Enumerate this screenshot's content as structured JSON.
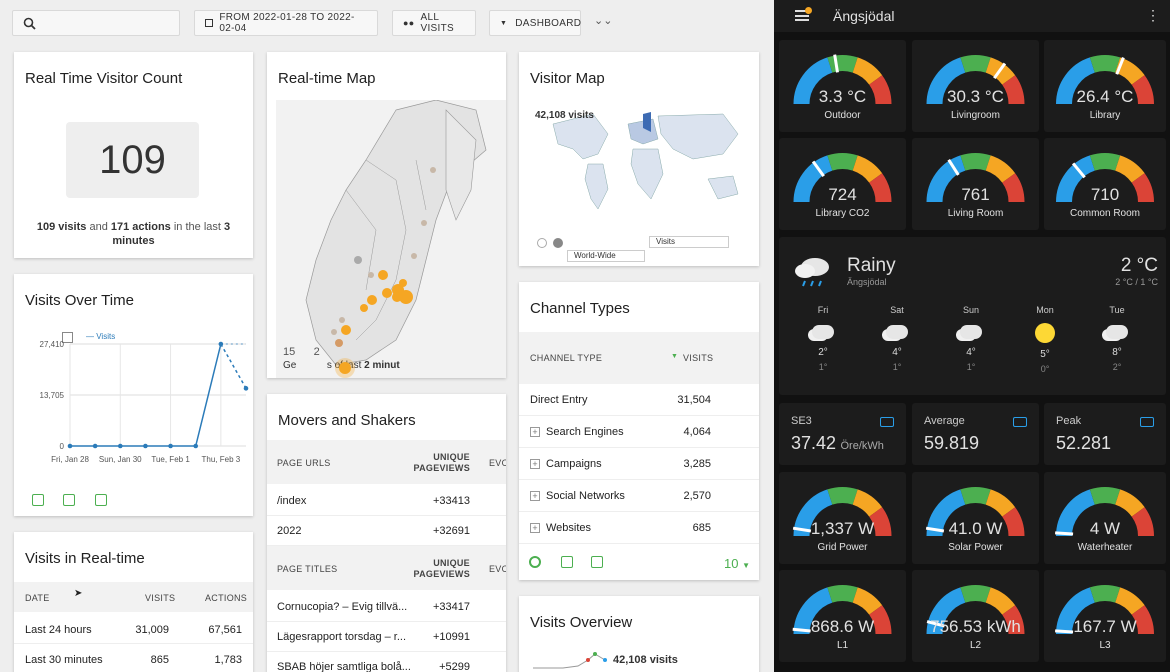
{
  "toolbar": {
    "date_range": "FROM 2022-01-28 TO 2022-02-04",
    "segment": "ALL VISITS",
    "dashboard": "DASHBOARD"
  },
  "realtime_count": {
    "title": "Real Time Visitor Count",
    "count": "109",
    "visits_num": "109 visits",
    "and": "and",
    "actions_num": "171 actions",
    "in_last": "in the last",
    "minutes": "3",
    "minutes_word": "minutes"
  },
  "realtime_map": {
    "title": "Real-time Map",
    "overlay_a": "15",
    "overlay_b": "2",
    "overlay_c": "Ge",
    "overlay_d": "s of last",
    "overlay_e": "2 minut"
  },
  "visitor_map": {
    "title": "Visitor Map",
    "visits": "42,108 visits",
    "metric_select": "Visits",
    "region_select": "World-Wide"
  },
  "visits_over_time": {
    "title": "Visits Over Time",
    "legend": "Visits",
    "y_ticks": [
      "27,410",
      "13,705",
      "0"
    ],
    "x_labels": [
      "Fri, Jan 28",
      "Sun, Jan 30",
      "Tue, Feb 1",
      "Thu, Feb 3"
    ]
  },
  "chart_data": {
    "type": "line",
    "x": [
      "Jan 28",
      "Jan 29",
      "Jan 30",
      "Jan 31",
      "Feb 1",
      "Feb 2",
      "Feb 3",
      "Feb 4"
    ],
    "series": [
      {
        "name": "Visits",
        "values": [
          0,
          0,
          0,
          0,
          0,
          0,
          27410,
          15500
        ]
      }
    ],
    "ylim": [
      0,
      27410
    ],
    "y_ticks": [
      0,
      13705,
      27410
    ],
    "grid": true,
    "legend": "top-left"
  },
  "channel_types": {
    "title": "Channel Types",
    "col_type": "CHANNEL TYPE",
    "col_visits": "VISITS",
    "rows": [
      {
        "label": "Direct Entry",
        "value": "31,504"
      },
      {
        "label": "Search Engines",
        "value": "4,064"
      },
      {
        "label": "Campaigns",
        "value": "3,285"
      },
      {
        "label": "Social Networks",
        "value": "2,570"
      },
      {
        "label": "Websites",
        "value": "685"
      }
    ],
    "limit": "10"
  },
  "movers": {
    "title": "Movers and Shakers",
    "col_urls": "PAGE URLS",
    "col_unique_a": "UNIQUE",
    "col_unique_b": "PAGEVIEWS",
    "col_evo": "EVO",
    "url_rows": [
      {
        "label": "/index",
        "value": "+33413"
      },
      {
        "label": "2022",
        "value": "+32691"
      }
    ],
    "col_titles": "PAGE TITLES",
    "title_rows": [
      {
        "label": "Cornucopia? – Evig tillvä...",
        "value": "+33417"
      },
      {
        "label": "Lägesrapport torsdag – r...",
        "value": "+10991"
      },
      {
        "label": "SBAB höjer samtliga bolå...",
        "value": "+5299"
      }
    ]
  },
  "visits_realtime": {
    "title": "Visits in Real-time",
    "col_date": "DATE",
    "col_visits": "VISITS",
    "col_actions": "ACTIONS",
    "rows": [
      {
        "label": "Last 24 hours",
        "visits": "31,009",
        "actions": "67,561"
      },
      {
        "label": "Last 30 minutes",
        "visits": "865",
        "actions": "1,783"
      }
    ]
  },
  "visits_overview": {
    "title": "Visits Overview",
    "visits": "42,108 visits"
  },
  "ha": {
    "title": "Ängsjödal",
    "gauges_top": [
      {
        "value": "3.3 °C",
        "name": "Outdoor",
        "level": 0.45
      },
      {
        "value": "30.3 °C",
        "name": "Livingroom",
        "level": 0.7
      },
      {
        "value": "26.4 °C",
        "name": "Library",
        "level": 0.62
      },
      {
        "value": "724",
        "name": "Library CO2",
        "level": 0.3
      },
      {
        "value": "761",
        "name": "Living Room",
        "level": 0.32
      },
      {
        "value": "710",
        "name": "Common Room",
        "level": 0.28
      }
    ],
    "weather": {
      "condition": "Rainy",
      "location": "Ängsjödal",
      "temp": "2 °C",
      "range": "2 °C / 1 °C",
      "forecast": [
        {
          "day": "Fri",
          "high": "2°",
          "low": "1°",
          "icon": "cloud-rain-icon"
        },
        {
          "day": "Sat",
          "high": "4°",
          "low": "1°",
          "icon": "cloud-icon"
        },
        {
          "day": "Sun",
          "high": "4°",
          "low": "1°",
          "icon": "cloud-rain-icon"
        },
        {
          "day": "Mon",
          "high": "5°",
          "low": "0°",
          "icon": "sun-icon"
        },
        {
          "day": "Tue",
          "high": "8°",
          "low": "2°",
          "icon": "cloud-rain-icon"
        }
      ]
    },
    "prices": [
      {
        "label": "SE3",
        "value": "37.42",
        "unit": "Öre/kWh"
      },
      {
        "label": "Average",
        "value": "59.819",
        "unit": ""
      },
      {
        "label": "Peak",
        "value": "52.281",
        "unit": ""
      }
    ],
    "gauges_bottom": [
      {
        "value": "1,337 W",
        "name": "Grid Power",
        "level": 0.05
      },
      {
        "value": "41.0 W",
        "name": "Solar Power",
        "level": 0.05
      },
      {
        "value": "4 W",
        "name": "Waterheater",
        "level": 0.02
      },
      {
        "value": "868.6 W",
        "name": "L1",
        "level": 0.03
      },
      {
        "value": "756.53 kWh",
        "name": "L2",
        "level": 0.08
      },
      {
        "value": "167.7 W",
        "name": "L3",
        "level": 0.02
      }
    ],
    "colors": {
      "blue": "#2a9ee8",
      "green": "#4caf50",
      "yellow": "#f5a623",
      "red": "#db4437"
    }
  }
}
